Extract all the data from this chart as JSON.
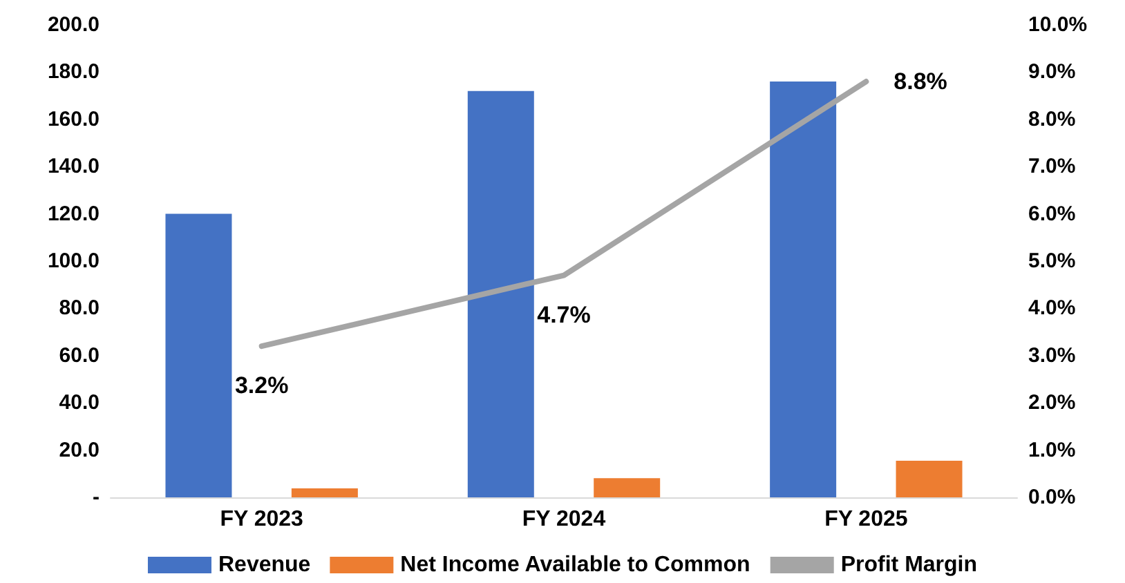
{
  "chart_data": {
    "type": "bar",
    "categories": [
      "FY 2023",
      "FY 2024",
      "FY 2025"
    ],
    "series": [
      {
        "name": "Revenue",
        "color": "#4472c4",
        "values": [
          120,
          172,
          176
        ]
      },
      {
        "name": "Net Income Available to Common",
        "color": "#ed7d31",
        "values": [
          3.8,
          8.1,
          15.5
        ]
      },
      {
        "name": "Profit Margin",
        "type": "line",
        "axis": "y2",
        "color": "#a5a5a5",
        "values": [
          3.2,
          4.7,
          8.8
        ],
        "value_labels": [
          "3.2%",
          "4.7%",
          "8.8%"
        ]
      }
    ],
    "ylim": [
      0,
      200
    ],
    "yticks": [
      {
        "value": 0,
        "label": "-"
      },
      {
        "value": 20,
        "label": "20.0"
      },
      {
        "value": 40,
        "label": "40.0"
      },
      {
        "value": 60,
        "label": "60.0"
      },
      {
        "value": 80,
        "label": "80.0"
      },
      {
        "value": 100,
        "label": "100.0"
      },
      {
        "value": 120,
        "label": "120.0"
      },
      {
        "value": 140,
        "label": "140.0"
      },
      {
        "value": 160,
        "label": "160.0"
      },
      {
        "value": 180,
        "label": "180.0"
      },
      {
        "value": 200,
        "label": "200.0"
      }
    ],
    "y2lim": [
      0,
      10
    ],
    "y2ticks": [
      {
        "value": 0,
        "label": "0.0%"
      },
      {
        "value": 1,
        "label": "1.0%"
      },
      {
        "value": 2,
        "label": "2.0%"
      },
      {
        "value": 3,
        "label": "3.0%"
      },
      {
        "value": 4,
        "label": "4.0%"
      },
      {
        "value": 5,
        "label": "5.0%"
      },
      {
        "value": 6,
        "label": "6.0%"
      },
      {
        "value": 7,
        "label": "7.0%"
      },
      {
        "value": 8,
        "label": "8.0%"
      },
      {
        "value": 9,
        "label": "9.0%"
      },
      {
        "value": 10,
        "label": "10.0%"
      }
    ],
    "grid": false,
    "legend": "bottom",
    "marker": "none",
    "line_style": "solid"
  }
}
